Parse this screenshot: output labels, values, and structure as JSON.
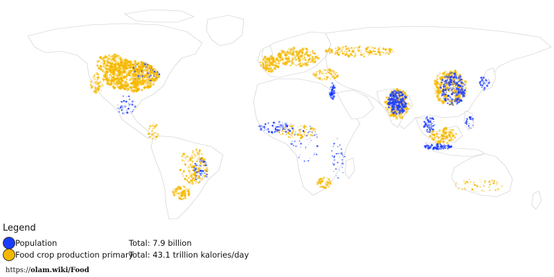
{
  "legend": {
    "title": "Legend",
    "items": [
      {
        "label": "Population",
        "total": "Total: 7.9 billion",
        "color": "#1a3cff"
      },
      {
        "label": "Food crop production primary",
        "total": "Total: 43.1 trillion kalories/day",
        "color": "#f5b800"
      }
    ]
  },
  "source": {
    "prefix": "https://",
    "domain": "olam.wiki/Food"
  },
  "map": {
    "land_color": "#ffffff",
    "border_color": "#c8c8c8"
  }
}
